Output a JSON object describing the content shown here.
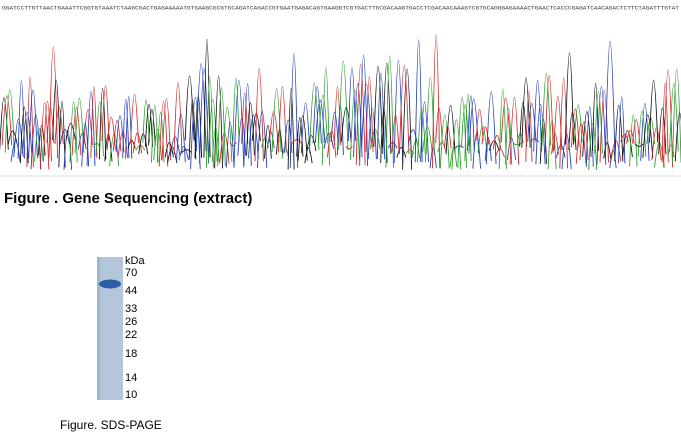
{
  "sequence": {
    "text": "GGATCCTTGTTAACTGAAATTCGGTGTAAATCTAAGCGACTGAGAAAAATGTGAAGCGCGTGCAGATCAGACCGTGAATGAGACAGTGAAGGTCGTGACTTGCGACAAGTGACCTCGACAACAAAGTCGTGCAGGGAGAAAACTGAACTCACCCGAGATCAACAGACTCTTCTAGATTTGTAT",
    "caption": "Figure . Gene Sequencing (extract)"
  },
  "gel": {
    "unit": "kDa",
    "markers": [
      "70",
      "44",
      "33",
      "26",
      "22",
      "18",
      "14",
      "10"
    ],
    "caption": "Figure. SDS-PAGE"
  }
}
